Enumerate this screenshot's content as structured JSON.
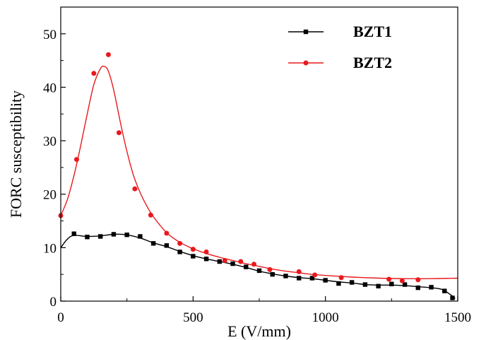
{
  "chart_data": {
    "type": "scatter",
    "title": "",
    "xlabel": "E (V/mm)",
    "ylabel": "FORC susceptibility",
    "xlim": [
      0,
      1500
    ],
    "ylim": [
      0,
      55
    ],
    "xticks": [
      0,
      500,
      1000,
      1500
    ],
    "yticks": [
      0,
      10,
      20,
      30,
      40,
      50
    ],
    "legend_position": "top-right",
    "grid": false,
    "series": [
      {
        "name": "BZT1",
        "color": "#000000",
        "marker": "square",
        "points": [
          [
            50,
            12.6
          ],
          [
            100,
            12.0
          ],
          [
            150,
            12.1
          ],
          [
            200,
            12.5
          ],
          [
            250,
            12.4
          ],
          [
            300,
            12.1
          ],
          [
            350,
            10.8
          ],
          [
            400,
            10.4
          ],
          [
            450,
            9.2
          ],
          [
            500,
            8.4
          ],
          [
            550,
            7.9
          ],
          [
            600,
            7.4
          ],
          [
            650,
            7.0
          ],
          [
            700,
            6.4
          ],
          [
            750,
            5.7
          ],
          [
            800,
            5.0
          ],
          [
            850,
            4.7
          ],
          [
            900,
            4.3
          ],
          [
            950,
            4.3
          ],
          [
            1000,
            3.9
          ],
          [
            1050,
            3.3
          ],
          [
            1100,
            3.5
          ],
          [
            1150,
            3.1
          ],
          [
            1200,
            2.8
          ],
          [
            1250,
            3.2
          ],
          [
            1300,
            3.1
          ],
          [
            1350,
            2.5
          ],
          [
            1400,
            2.6
          ],
          [
            1450,
            1.9
          ],
          [
            1480,
            0.6
          ]
        ],
        "fit": [
          [
            0,
            10.0
          ],
          [
            25,
            11.6
          ],
          [
            50,
            12.3
          ],
          [
            100,
            12.1
          ],
          [
            150,
            12.2
          ],
          [
            200,
            12.5
          ],
          [
            250,
            12.4
          ],
          [
            300,
            11.8
          ],
          [
            350,
            10.9
          ],
          [
            400,
            10.2
          ],
          [
            450,
            9.3
          ],
          [
            500,
            8.5
          ],
          [
            550,
            7.9
          ],
          [
            600,
            7.4
          ],
          [
            650,
            6.9
          ],
          [
            700,
            6.3
          ],
          [
            750,
            5.6
          ],
          [
            800,
            5.1
          ],
          [
            850,
            4.7
          ],
          [
            900,
            4.4
          ],
          [
            950,
            4.2
          ],
          [
            1000,
            3.9
          ],
          [
            1050,
            3.6
          ],
          [
            1100,
            3.4
          ],
          [
            1150,
            3.1
          ],
          [
            1200,
            3.0
          ],
          [
            1250,
            3.0
          ],
          [
            1300,
            2.9
          ],
          [
            1350,
            2.7
          ],
          [
            1400,
            2.5
          ],
          [
            1440,
            2.2
          ],
          [
            1470,
            1.3
          ],
          [
            1490,
            0.5
          ]
        ]
      },
      {
        "name": "BZT2",
        "color": "#e8191c",
        "marker": "circle",
        "points": [
          [
            0,
            16.0
          ],
          [
            60,
            26.5
          ],
          [
            125,
            42.6
          ],
          [
            180,
            46.1
          ],
          [
            220,
            31.5
          ],
          [
            280,
            21.0
          ],
          [
            340,
            16.1
          ],
          [
            400,
            12.7
          ],
          [
            450,
            10.8
          ],
          [
            500,
            9.7
          ],
          [
            550,
            9.2
          ],
          [
            620,
            7.6
          ],
          [
            680,
            7.4
          ],
          [
            730,
            6.9
          ],
          [
            790,
            5.9
          ],
          [
            900,
            5.5
          ],
          [
            960,
            4.9
          ],
          [
            1060,
            4.4
          ],
          [
            1240,
            4.1
          ],
          [
            1290,
            3.8
          ],
          [
            1350,
            4.0
          ]
        ],
        "fit": [
          [
            0,
            16.0
          ],
          [
            25,
            19.0
          ],
          [
            50,
            23.5
          ],
          [
            75,
            29.0
          ],
          [
            100,
            35.0
          ],
          [
            125,
            40.5
          ],
          [
            150,
            43.5
          ],
          [
            165,
            43.9
          ],
          [
            180,
            43.0
          ],
          [
            200,
            39.5
          ],
          [
            225,
            33.5
          ],
          [
            250,
            28.0
          ],
          [
            275,
            23.5
          ],
          [
            300,
            20.3
          ],
          [
            325,
            17.8
          ],
          [
            350,
            15.8
          ],
          [
            400,
            12.8
          ],
          [
            450,
            11.0
          ],
          [
            500,
            9.8
          ],
          [
            550,
            8.9
          ],
          [
            600,
            8.2
          ],
          [
            650,
            7.6
          ],
          [
            700,
            7.0
          ],
          [
            750,
            6.5
          ],
          [
            800,
            6.0
          ],
          [
            850,
            5.6
          ],
          [
            900,
            5.3
          ],
          [
            950,
            5.0
          ],
          [
            1000,
            4.8
          ],
          [
            1100,
            4.5
          ],
          [
            1200,
            4.3
          ],
          [
            1300,
            4.2
          ],
          [
            1400,
            4.2
          ],
          [
            1500,
            4.3
          ]
        ]
      }
    ]
  }
}
